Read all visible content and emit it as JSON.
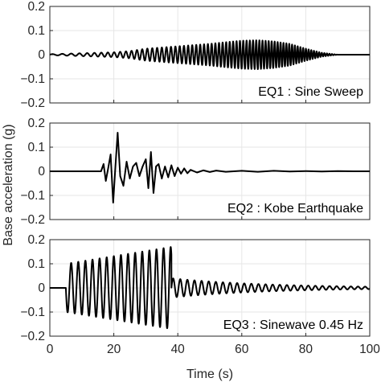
{
  "figure": {
    "ylabel": "Base acceleration (g)",
    "xlabel": "Time (s)"
  },
  "chart_data": [
    {
      "type": "line",
      "annotation": "EQ1 : Sine Sweep",
      "xlim": [
        0,
        100
      ],
      "ylim": [
        -0.2,
        0.2
      ],
      "xticks": [
        0,
        20,
        40,
        60,
        80,
        100
      ],
      "yticks": [
        0.2,
        0.1,
        0,
        -0.1,
        -0.2
      ],
      "grid": true,
      "series": [
        {
          "signal": "sine-sweep",
          "x": [
            0,
            5,
            10,
            15,
            20,
            25,
            30,
            35,
            40,
            45,
            50,
            55,
            60,
            65,
            70,
            75,
            80,
            85,
            90
          ],
          "amplitude": [
            0.002,
            0.004,
            0.006,
            0.008,
            0.01,
            0.015,
            0.025,
            0.03,
            0.035,
            0.04,
            0.045,
            0.052,
            0.058,
            0.06,
            0.055,
            0.045,
            0.025,
            0.008,
            0
          ],
          "frequency_hz_start": 0.3,
          "frequency_hz_end": 1.4
        }
      ]
    },
    {
      "type": "line",
      "annotation": "EQ2 : Kobe Earthquake",
      "xlim": [
        0,
        100
      ],
      "ylim": [
        -0.2,
        0.2
      ],
      "xticks": [
        0,
        20,
        40,
        60,
        80,
        100
      ],
      "yticks": [
        0.2,
        0.1,
        0,
        -0.1,
        -0.2
      ],
      "grid": true,
      "series": [
        {
          "signal": "earthquake",
          "x": [
            0,
            16,
            16.8,
            17.5,
            18.2,
            19,
            19.8,
            20.5,
            21.2,
            22,
            23,
            24,
            25,
            26,
            27,
            28,
            29,
            30,
            30.8,
            31.6,
            32.4,
            33.2,
            34,
            35,
            36,
            37,
            38,
            39,
            40,
            41,
            42,
            43,
            44,
            46,
            48,
            50,
            52,
            55,
            60,
            65,
            70,
            75,
            80,
            85,
            90,
            95,
            100
          ],
          "y": [
            0,
            0,
            0.03,
            -0.04,
            0.01,
            0.07,
            -0.13,
            0.02,
            0.16,
            -0.02,
            -0.06,
            0.04,
            -0.03,
            0.02,
            0.035,
            -0.02,
            0.02,
            0.05,
            -0.07,
            0.08,
            -0.09,
            0.02,
            0.03,
            -0.03,
            0.02,
            -0.025,
            0.025,
            -0.02,
            0.015,
            -0.01,
            0.012,
            -0.008,
            0.006,
            -0.005,
            0.004,
            -0.003,
            0.003,
            -0.002,
            0.002,
            -0.002,
            0.002,
            -0.001,
            0.001,
            -0.001,
            0.001,
            0,
            0
          ]
        }
      ]
    },
    {
      "type": "line",
      "annotation": "EQ3 : Sinewave 0.45 Hz",
      "xlim": [
        0,
        100
      ],
      "ylim": [
        -0.2,
        0.2
      ],
      "xticks": [
        0,
        20,
        40,
        60,
        80,
        100
      ],
      "yticks": [
        0.2,
        0.1,
        0,
        -0.1,
        -0.2
      ],
      "grid": true,
      "series": [
        {
          "signal": "sinewave",
          "frequency_hz": 0.45,
          "forced_start": 5,
          "forced_end": 38,
          "forced_amplitude_start": 0.1,
          "forced_amplitude_end": 0.17,
          "free_decay_start_amplitude": 0.04,
          "free_decay_end_amplitude": 0.005,
          "free_decay_end": 100
        }
      ]
    }
  ]
}
